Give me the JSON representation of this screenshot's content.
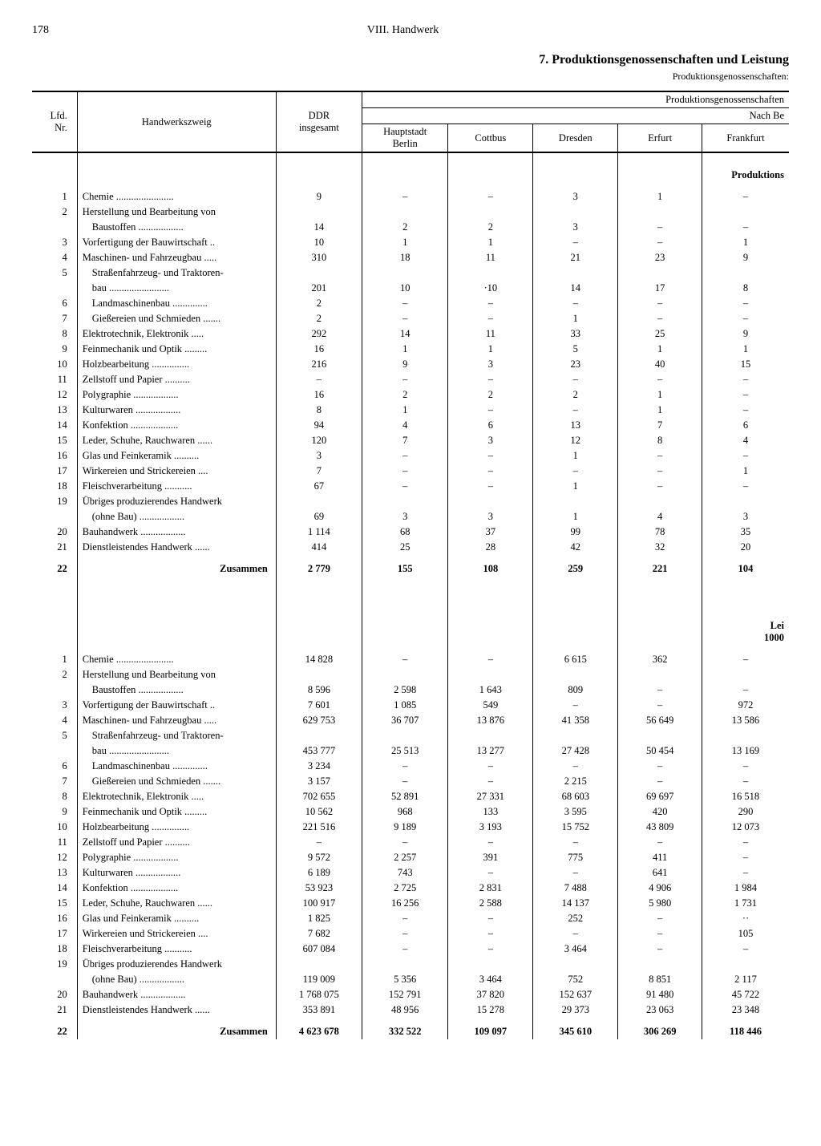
{
  "page_number": "178",
  "chapter": "VIII. Handwerk",
  "title": "7. Produktionsgenossenschaften und Leistung",
  "subtitle": "Produktionsgenossenschaften:",
  "header": {
    "lfd": "Lfd.\nNr.",
    "zweig": "Handwerkszweig",
    "ddr": "DDR\ninsgesamt",
    "group1": "Produktionsgenossenschaften",
    "group2": "Nach Be",
    "cols": [
      "Hauptstadt\nBerlin",
      "Cottbus",
      "Dresden",
      "Erfurt",
      "Frankfurt"
    ]
  },
  "section1_label": "Produktions",
  "section2_label": "Lei",
  "section2_unit": "1000",
  "zusammen": "Zusammen",
  "rows": [
    {
      "nr": "1",
      "label": "Chemie",
      "dots": true
    },
    {
      "nr": "2",
      "label": "Herstellung und Bearbeitung von",
      "cont": "Baustoffen",
      "dots": true
    },
    {
      "nr": "3",
      "label": "Vorfertigung der Bauwirtschaft",
      "dots": true
    },
    {
      "nr": "4",
      "label": "Maschinen- und Fahrzeugbau",
      "dots": true
    },
    {
      "nr": "5",
      "label": "Straßenfahrzeug- und Traktoren-",
      "cont": "bau",
      "dots": true,
      "indent": true
    },
    {
      "nr": "6",
      "label": "Landmaschinenbau",
      "dots": true,
      "indent": true
    },
    {
      "nr": "7",
      "label": "Gießereien und Schmieden",
      "dots": true,
      "indent": true
    },
    {
      "nr": "8",
      "label": "Elektrotechnik, Elektronik",
      "dots": true
    },
    {
      "nr": "9",
      "label": "Feinmechanik und Optik",
      "dots": true
    },
    {
      "nr": "10",
      "label": "Holzbearbeitung",
      "dots": true
    },
    {
      "nr": "11",
      "label": "Zellstoff und Papier",
      "dots": true
    },
    {
      "nr": "12",
      "label": "Polygraphie",
      "dots": true
    },
    {
      "nr": "13",
      "label": "Kulturwaren",
      "dots": true
    },
    {
      "nr": "14",
      "label": "Konfektion",
      "dots": true
    },
    {
      "nr": "15",
      "label": "Leder, Schuhe, Rauchwaren",
      "dots": true
    },
    {
      "nr": "16",
      "label": "Glas und Feinkeramik",
      "dots": true
    },
    {
      "nr": "17",
      "label": "Wirkereien und Strickereien",
      "dots": true
    },
    {
      "nr": "18",
      "label": "Fleischverarbeitung",
      "dots": true
    },
    {
      "nr": "19",
      "label": "Übriges produzierendes Handwerk",
      "cont": "(ohne Bau)",
      "dots": true
    },
    {
      "nr": "20",
      "label": "Bauhandwerk",
      "dots": true
    },
    {
      "nr": "21",
      "label": "Dienstleistendes Handwerk",
      "dots": true
    }
  ],
  "data1": [
    [
      "9",
      "–",
      "–",
      "3",
      "1",
      "–"
    ],
    [
      "14",
      "2",
      "2",
      "3",
      "–",
      "–"
    ],
    [
      "10",
      "1",
      "1",
      "–",
      "–",
      "1"
    ],
    [
      "310",
      "18",
      "11",
      "21",
      "23",
      "9"
    ],
    [
      "201",
      "10",
      "·10",
      "14",
      "17",
      "8"
    ],
    [
      "2",
      "–",
      "–",
      "–",
      "–",
      "–"
    ],
    [
      "2",
      "–",
      "–",
      "1",
      "–",
      "–"
    ],
    [
      "292",
      "14",
      "11",
      "33",
      "25",
      "9"
    ],
    [
      "16",
      "1",
      "1",
      "5",
      "1",
      "1"
    ],
    [
      "216",
      "9",
      "3",
      "23",
      "40",
      "15"
    ],
    [
      "–",
      "–",
      "–",
      "–",
      "–",
      "–"
    ],
    [
      "16",
      "2",
      "2",
      "2",
      "1",
      "–"
    ],
    [
      "8",
      "1",
      "–",
      "–",
      "1",
      "–"
    ],
    [
      "94",
      "4",
      "6",
      "13",
      "7",
      "6"
    ],
    [
      "120",
      "7",
      "3",
      "12",
      "8",
      "4"
    ],
    [
      "3",
      "–",
      "–",
      "1",
      "–",
      "–"
    ],
    [
      "7",
      "–",
      "–",
      "–",
      "–",
      "1"
    ],
    [
      "67",
      "–",
      "–",
      "1",
      "–",
      "–"
    ],
    [
      "69",
      "3",
      "3",
      "1",
      "4",
      "3"
    ],
    [
      "1 114",
      "68",
      "37",
      "99",
      "78",
      "35"
    ],
    [
      "414",
      "25",
      "28",
      "42",
      "32",
      "20"
    ]
  ],
  "sum1": [
    "2 779",
    "155",
    "108",
    "259",
    "221",
    "104"
  ],
  "data2": [
    [
      "14 828",
      "–",
      "–",
      "6 615",
      "362",
      "–"
    ],
    [
      "8 596",
      "2 598",
      "1 643",
      "809",
      "–",
      "–"
    ],
    [
      "7 601",
      "1 085",
      "549",
      "–",
      "–",
      "972"
    ],
    [
      "629 753",
      "36 707",
      "13 876",
      "41 358",
      "56 649",
      "13 586"
    ],
    [
      "453 777",
      "25 513",
      "13 277",
      "27 428",
      "50 454",
      "13 169"
    ],
    [
      "3 234",
      "–",
      "–",
      "–",
      "–",
      "–"
    ],
    [
      "3 157",
      "–",
      "–",
      "2 215",
      "–",
      "–"
    ],
    [
      "702 655",
      "52 891",
      "27 331",
      "68 603",
      "69 697",
      "16 518"
    ],
    [
      "10 562",
      "968",
      "133",
      "3 595",
      "420",
      "290"
    ],
    [
      "221 516",
      "9 189",
      "3 193",
      "15 752",
      "43 809",
      "12 073"
    ],
    [
      "–",
      "–",
      "–",
      "–",
      "–",
      "–"
    ],
    [
      "9 572",
      "2 257",
      "391",
      "775",
      "411",
      "–"
    ],
    [
      "6 189",
      "743",
      "–",
      "–",
      "641",
      "–"
    ],
    [
      "53 923",
      "2 725",
      "2 831",
      "7 488",
      "4 906",
      "1 984"
    ],
    [
      "100 917",
      "16 256",
      "2 588",
      "14 137",
      "5 980",
      "1 731"
    ],
    [
      "1 825",
      "–",
      "–",
      "252",
      "–",
      "··"
    ],
    [
      "7 682",
      "–",
      "–",
      "–",
      "–",
      "105"
    ],
    [
      "607 084",
      "–",
      "–",
      "3 464",
      "–",
      "–"
    ],
    [
      "119 009",
      "5 356",
      "3 464",
      "752",
      "8 851",
      "2 117"
    ],
    [
      "1 768 075",
      "152 791",
      "37 820",
      "152 637",
      "91 480",
      "45 722"
    ],
    [
      "353 891",
      "48 956",
      "15 278",
      "29 373",
      "23 063",
      "23 348"
    ]
  ],
  "sum2": [
    "4 623 678",
    "332 522",
    "109 097",
    "345 610",
    "306 269",
    "118 446"
  ],
  "sum_nr": "22"
}
